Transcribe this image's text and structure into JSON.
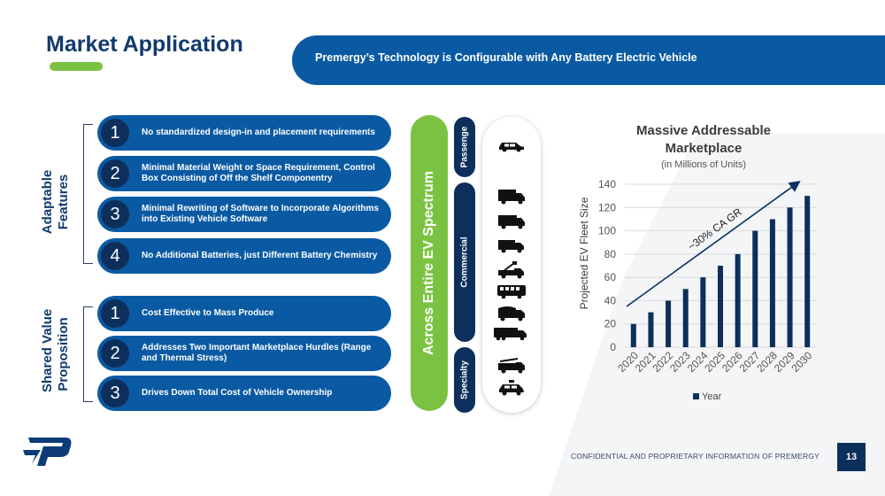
{
  "title": "Market Application",
  "banner": "Premergy’s Technology is Configurable with Any Battery Electric Vehicle",
  "adaptable": {
    "label_line1": "Adaptable",
    "label_line2": "Features",
    "items": [
      {
        "num": "1",
        "text": "No standardized design-in and placement requirements"
      },
      {
        "num": "2",
        "text": "Minimal Material Weight or Space Requirement, Control Box Consisting of Off the Shelf Componentry"
      },
      {
        "num": "3",
        "text": "Minimal Rewriting of Software to Incorporate Algorithms into Existing Vehicle Software"
      },
      {
        "num": "4",
        "text": "No Additional Batteries, just Different Battery Chemistry"
      }
    ]
  },
  "shared": {
    "label_line1": "Shared Value",
    "label_line2": "Proposition",
    "items": [
      {
        "num": "1",
        "text": "Cost Effective to Mass Produce"
      },
      {
        "num": "2",
        "text": "Addresses Two Important Marketplace Hurdles (Range and Thermal Stress)"
      },
      {
        "num": "3",
        "text": "Drives Down Total Cost of Vehicle Ownership"
      }
    ]
  },
  "spectrum": "Across Entire EV Spectrum",
  "categories": {
    "passenger": "Passenge",
    "commercial": "Commercial",
    "specialty": "Specialty"
  },
  "vehicle_icons": [
    "car-icon",
    "box-truck-icon",
    "delivery-truck-icon",
    "van-truck-icon",
    "bucket-truck-icon",
    "bus-icon",
    "garbage-truck-icon",
    "semi-truck-icon",
    "fire-truck-icon",
    "police-car-icon"
  ],
  "colors": {
    "navy": "#0d2f5c",
    "blue": "#0a5aa3",
    "green": "#7cc242"
  },
  "chart_data": {
    "type": "bar",
    "title": "Massive Addressable Marketplace",
    "subtitle": "(in Millions of Units)",
    "ylabel": "Projected EV Fleet Size",
    "legend": "Year",
    "annotation": "~30% CA GR",
    "categories": [
      "2020",
      "2021",
      "2022",
      "2023",
      "2024",
      "2025",
      "2026",
      "2027",
      "2028",
      "2029",
      "2030"
    ],
    "values": [
      20,
      30,
      40,
      50,
      60,
      70,
      80,
      100,
      110,
      120,
      130
    ],
    "ylim": [
      0,
      140
    ],
    "yticks": [
      "0",
      "20",
      "40",
      "60",
      "80",
      "100",
      "120",
      "140"
    ],
    "grid": true,
    "legend_position": "bottom"
  },
  "footer": "CONFIDENTIAL AND PROPRIETARY INFORMATION OF PREMERGY",
  "page_number": "13"
}
